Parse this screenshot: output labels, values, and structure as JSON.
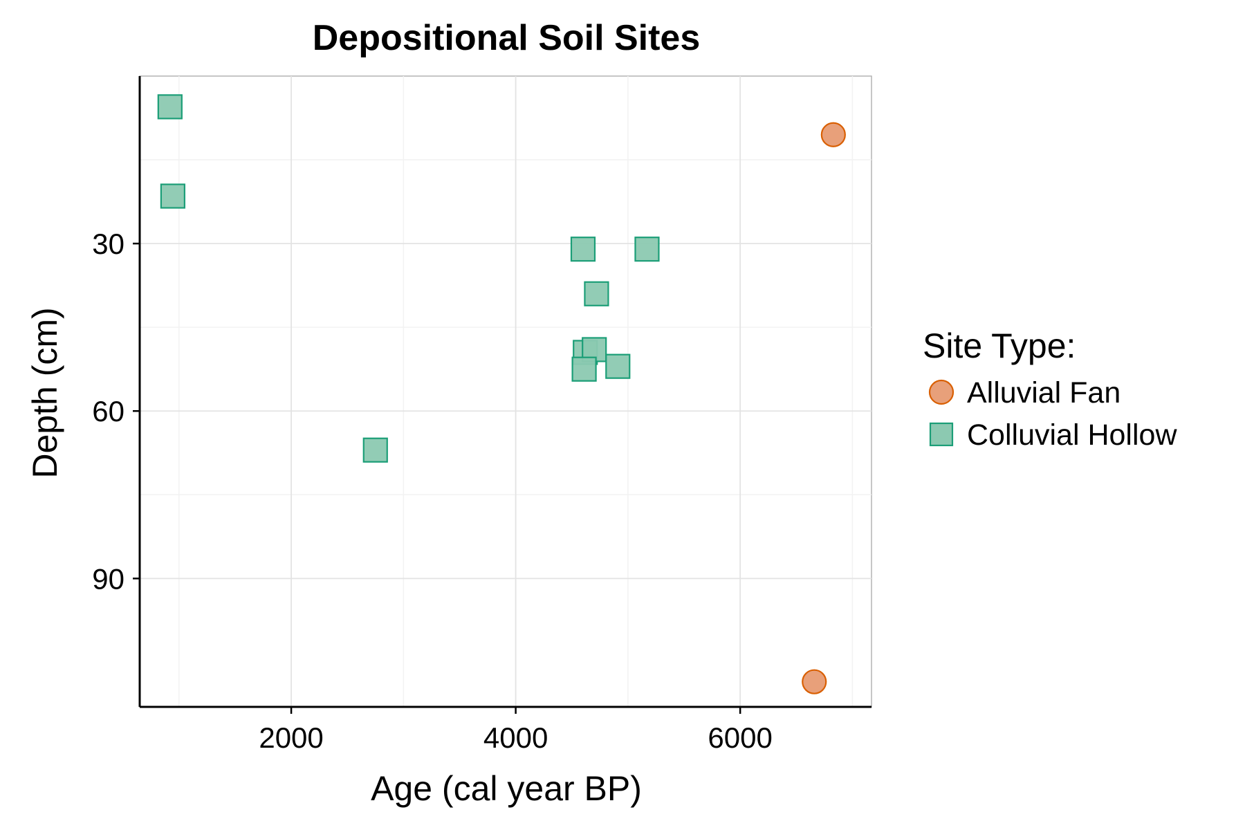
{
  "chart_data": {
    "type": "scatter",
    "title": "Depositional Soil Sites",
    "xlabel": "Age (cal year BP)",
    "ylabel": "Depth (cm)",
    "xlim": [
      650,
      7170
    ],
    "ylim": [
      0,
      113
    ],
    "y_reversed": true,
    "x_ticks": [
      2000,
      4000,
      6000
    ],
    "x_tick_labels": [
      "2000",
      "4000",
      "6000"
    ],
    "x_minor_ticks": [
      1000,
      3000,
      5000,
      7000
    ],
    "y_ticks": [
      30,
      60,
      90
    ],
    "y_tick_labels": [
      "30",
      "60",
      "90"
    ],
    "y_minor_ticks": [
      15,
      45,
      75
    ],
    "grid": true,
    "legend": {
      "title": "Site Type:",
      "position": "right"
    },
    "series": [
      {
        "name": "Alluvial Fan",
        "marker": "circle",
        "fill": "#E8A07A",
        "stroke": "#D95F02",
        "points": [
          {
            "x": 6830,
            "y": 10.5
          },
          {
            "x": 6660,
            "y": 108.5
          }
        ]
      },
      {
        "name": "Colluvial Hollow",
        "marker": "square",
        "fill": "#8CC9B1",
        "stroke": "#1B9E77",
        "points": [
          {
            "x": 920,
            "y": 5.5
          },
          {
            "x": 945,
            "y": 21.5
          },
          {
            "x": 2750,
            "y": 67.0
          },
          {
            "x": 4600,
            "y": 31.0
          },
          {
            "x": 4720,
            "y": 39.0
          },
          {
            "x": 5170,
            "y": 31.0
          },
          {
            "x": 4620,
            "y": 49.5
          },
          {
            "x": 4700,
            "y": 49.0
          },
          {
            "x": 4610,
            "y": 52.5
          },
          {
            "x": 4910,
            "y": 52.0
          }
        ]
      }
    ]
  }
}
